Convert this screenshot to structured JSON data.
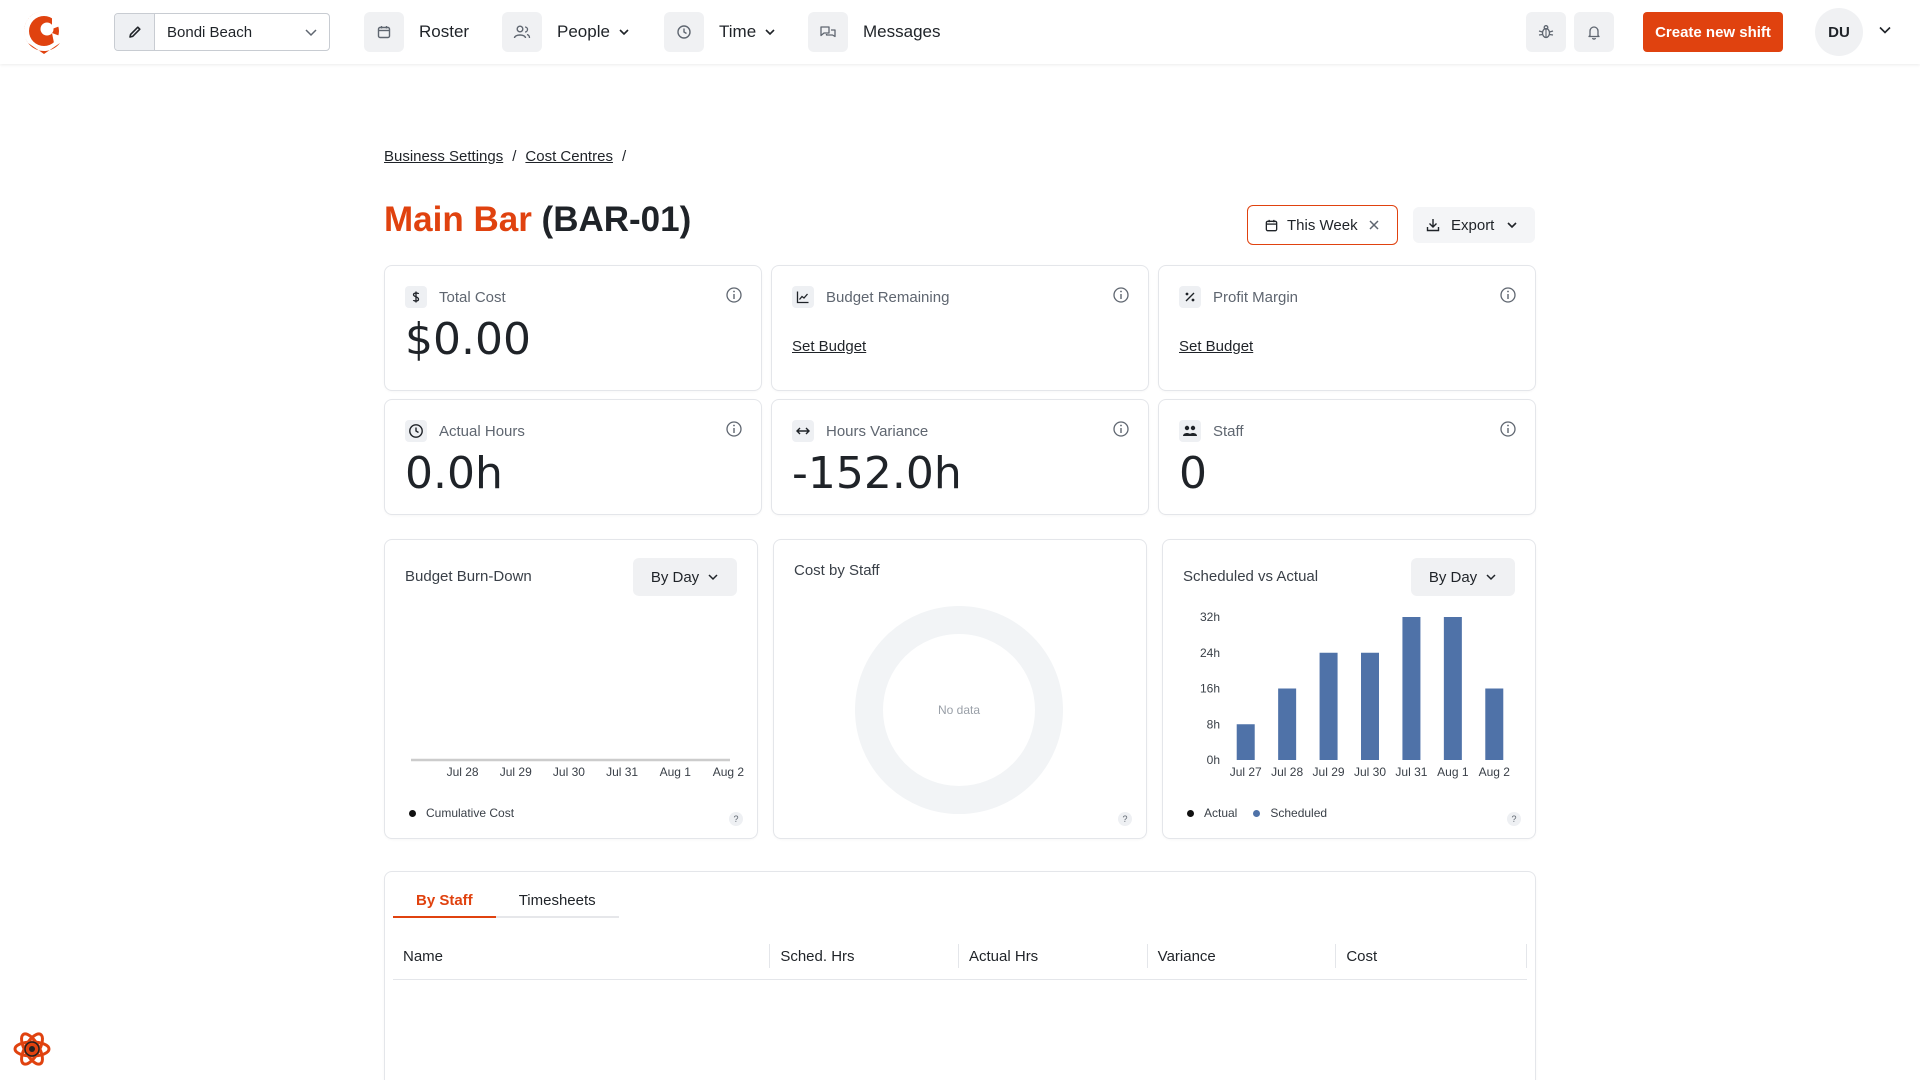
{
  "nav": {
    "location": "Bondi Beach",
    "items": [
      {
        "label": "Roster"
      },
      {
        "label": "People"
      },
      {
        "label": "Time"
      },
      {
        "label": "Messages"
      }
    ],
    "create_label": "Create new shift",
    "avatar_initials": "DU"
  },
  "breadcrumb": [
    "Business Settings",
    "Cost Centres"
  ],
  "title": {
    "name": "Main Bar",
    "code": "(BAR-01)"
  },
  "filters": {
    "week_label": "This Week",
    "export_label": "Export"
  },
  "stats": [
    {
      "title": "Total Cost",
      "value": "$0.00",
      "icon": "dollar-icon"
    },
    {
      "title": "Budget Remaining",
      "link": "Set Budget",
      "icon": "trend-icon"
    },
    {
      "title": "Profit Margin",
      "link": "Set Budget",
      "icon": "percent-icon"
    },
    {
      "title": "Actual Hours",
      "value": "0.0h",
      "icon": "clock-icon"
    },
    {
      "title": "Hours Variance",
      "value": "-152.0h",
      "icon": "arrows-icon"
    },
    {
      "title": "Staff",
      "value": "0",
      "icon": "people-icon"
    }
  ],
  "charts": {
    "burndown": {
      "title": "Budget Burn-Down",
      "group_label": "By Day",
      "legend": "Cumulative Cost"
    },
    "cost_by_staff": {
      "title": "Cost by Staff",
      "empty": "No data"
    },
    "sched_vs_actual": {
      "title": "Scheduled vs Actual",
      "group_label": "By Day",
      "legend_actual": "Actual",
      "legend_scheduled": "Scheduled"
    }
  },
  "chart_data": [
    {
      "type": "line",
      "title": "Budget Burn-Down",
      "categories": [
        "Jul 28",
        "Jul 29",
        "Jul 30",
        "Jul 31",
        "Aug 1",
        "Aug 2"
      ],
      "series": [
        {
          "name": "Cumulative Cost",
          "values": [
            0,
            0,
            0,
            0,
            0,
            0
          ]
        }
      ],
      "color": "#cccccc"
    },
    {
      "type": "pie",
      "title": "Cost by Staff",
      "slices": [],
      "empty_text": "No data"
    },
    {
      "type": "bar",
      "title": "Scheduled vs Actual",
      "categories": [
        "Jul 27",
        "Jul 28",
        "Jul 29",
        "Jul 30",
        "Jul 31",
        "Aug 1",
        "Aug 2"
      ],
      "series": [
        {
          "name": "Actual",
          "values": [
            0,
            0,
            0,
            0,
            0,
            0,
            0
          ],
          "color": "#111111"
        },
        {
          "name": "Scheduled",
          "values": [
            8,
            16,
            24,
            24,
            32,
            32,
            16
          ],
          "color": "#4f72a8"
        }
      ],
      "yticks": [
        "0h",
        "8h",
        "16h",
        "24h",
        "32h"
      ],
      "ylim": [
        0,
        32
      ]
    }
  ],
  "table": {
    "tabs": [
      "By Staff",
      "Timesheets"
    ],
    "columns": [
      "Name",
      "Sched. Hrs",
      "Actual Hrs",
      "Variance",
      "Cost"
    ]
  },
  "colors": {
    "accent": "#e0420f",
    "bar": "#4f72a8"
  }
}
